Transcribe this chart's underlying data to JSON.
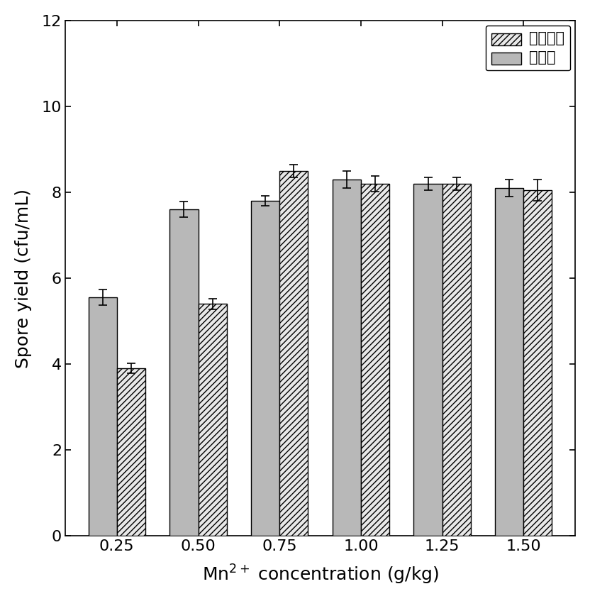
{
  "categories": [
    "0.25",
    "0.50",
    "0.75",
    "1.00",
    "1.25",
    "1.50"
  ],
  "series1_label": "固态曲种",
  "series2_label": "种子液",
  "series1_values": [
    3.9,
    5.4,
    8.5,
    8.2,
    8.2,
    8.05
  ],
  "series2_values": [
    5.55,
    7.6,
    7.8,
    8.3,
    8.2,
    8.1
  ],
  "series1_errors": [
    0.12,
    0.12,
    0.15,
    0.18,
    0.15,
    0.25
  ],
  "series2_errors": [
    0.18,
    0.18,
    0.12,
    0.2,
    0.15,
    0.2
  ],
  "bar_width": 0.35,
  "solid_color": "#b8b8b8",
  "hatch_facecolor": "#e8e8e8",
  "hatch_pattern": "////",
  "xlabel_plain": "Mn",
  "xlabel_super": "2+",
  "xlabel_rest": " concentration (g/kg)",
  "ylabel": "Spore yield (cfu/mL)",
  "ylim": [
    0,
    12
  ],
  "yticks": [
    0,
    2,
    4,
    6,
    8,
    10,
    12
  ],
  "legend_loc": "upper right",
  "background_color": "#ffffff",
  "label_fontsize": 18,
  "tick_fontsize": 16,
  "legend_fontsize": 15
}
